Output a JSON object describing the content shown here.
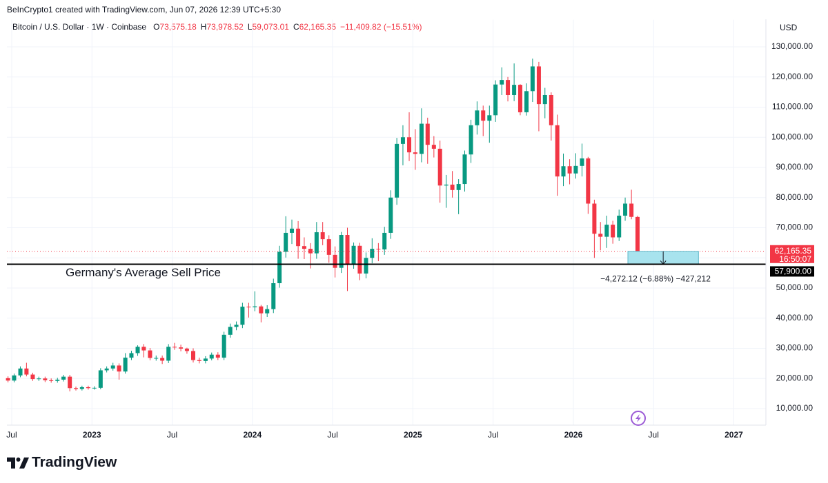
{
  "chart_data": {
    "type": "candlestick",
    "attribution": "BeInCrypto1 created with TradingView.com, Jun 07, 2026 12:39 UTC+5:30",
    "symbol": "Bitcoin / U.S. Dollar · 1W · Coinbase",
    "legend_fields": [
      {
        "key": "O",
        "value": "73,575.18"
      },
      {
        "key": "H",
        "value": "73,978.52"
      },
      {
        "key": "L",
        "value": "59,073.01"
      },
      {
        "key": "C",
        "value": "62,165.35"
      }
    ],
    "change": "−11,409.82 (−15.51%)",
    "currency": "USD",
    "brand": "TradingView",
    "up_color": "#089981",
    "down_color": "#f23645",
    "grid": true,
    "xlim": [
      2022.47,
      2027.2
    ],
    "ylim": [
      5000,
      139000
    ],
    "xticks": [
      {
        "value": 2022.5,
        "label": "Jul"
      },
      {
        "value": 2023,
        "label": "2023"
      },
      {
        "value": 2023.5,
        "label": "Jul"
      },
      {
        "value": 2024,
        "label": "2024"
      },
      {
        "value": 2024.5,
        "label": "Jul"
      },
      {
        "value": 2025,
        "label": "2025"
      },
      {
        "value": 2025.5,
        "label": "Jul"
      },
      {
        "value": 2026,
        "label": "2026"
      },
      {
        "value": 2026.5,
        "label": "Jul"
      },
      {
        "value": 2027,
        "label": "2027"
      }
    ],
    "yticks": [
      {
        "value": 10000,
        "label": "10,000.00"
      },
      {
        "value": 20000,
        "label": "20,000.00"
      },
      {
        "value": 30000,
        "label": "30,000.00"
      },
      {
        "value": 40000,
        "label": "40,000.00"
      },
      {
        "value": 50000,
        "label": "50,000.00"
      },
      {
        "value": 60000,
        "label": "60,000.00"
      },
      {
        "value": 70000,
        "label": "70,000.00"
      },
      {
        "value": 80000,
        "label": "80,000.00"
      },
      {
        "value": 90000,
        "label": "90,000.00"
      },
      {
        "value": 100000,
        "label": "100,000.00"
      },
      {
        "value": 110000,
        "label": "110,000.00"
      },
      {
        "value": 120000,
        "label": "120,000.00"
      },
      {
        "value": 130000,
        "label": "130,000.00"
      }
    ],
    "x": [
      2022.477,
      2022.515,
      2022.554,
      2022.592,
      2022.631,
      2022.669,
      2022.708,
      2022.746,
      2022.785,
      2022.823,
      2022.862,
      2022.9,
      2022.938,
      2022.977,
      2023.015,
      2023.054,
      2023.092,
      2023.131,
      2023.169,
      2023.208,
      2023.246,
      2023.285,
      2023.323,
      2023.362,
      2023.4,
      2023.438,
      2023.477,
      2023.515,
      2023.554,
      2023.592,
      2023.631,
      2023.669,
      2023.708,
      2023.746,
      2023.785,
      2023.823,
      2023.862,
      2023.9,
      2023.938,
      2023.977,
      2024.015,
      2024.054,
      2024.092,
      2024.131,
      2024.169,
      2024.208,
      2024.246,
      2024.285,
      2024.323,
      2024.362,
      2024.4,
      2024.438,
      2024.477,
      2024.515,
      2024.554,
      2024.592,
      2024.631,
      2024.669,
      2024.708,
      2024.746,
      2024.785,
      2024.823,
      2024.862,
      2024.9,
      2024.938,
      2024.977,
      2025.015,
      2025.054,
      2025.092,
      2025.131,
      2025.169,
      2025.208,
      2025.246,
      2025.285,
      2025.323,
      2025.362,
      2025.4,
      2025.438,
      2025.477,
      2025.515,
      2025.554,
      2025.592,
      2025.631,
      2025.669,
      2025.708,
      2025.746,
      2025.785,
      2025.823,
      2025.862,
      2025.9,
      2025.938,
      2025.977,
      2026.015,
      2026.054,
      2026.092,
      2026.131,
      2026.169,
      2026.208,
      2026.246,
      2026.285,
      2026.323,
      2026.362,
      2026.4
    ],
    "open": [
      20100,
      19300,
      21000,
      23300,
      21300,
      19800,
      20000,
      19400,
      19200,
      19600,
      20600,
      16800,
      16500,
      17100,
      16800,
      16900,
      22700,
      23300,
      24300,
      22300,
      26900,
      28400,
      30500,
      29300,
      26800,
      26800,
      25900,
      30500,
      30300,
      29900,
      29100,
      26100,
      25800,
      26600,
      27900,
      26900,
      34500,
      37100,
      37800,
      43800,
      43600,
      43900,
      41600,
      43000,
      51600,
      62000,
      68300,
      69700,
      63900,
      63000,
      61500,
      68500,
      66200,
      61000,
      56700,
      67600,
      58100,
      64000,
      54800,
      60000,
      63000,
      62800,
      68300,
      80000,
      97800,
      100000,
      95000,
      94500,
      104500,
      97500,
      96200,
      84000,
      84300,
      82500,
      84500,
      94300,
      104000,
      108900,
      105500,
      107300,
      117500,
      119000,
      114000,
      117400,
      108300,
      115300,
      123500,
      111000,
      114000,
      104000,
      87000,
      90400,
      88000,
      90500,
      93000,
      78000,
      68000,
      67000,
      71000,
      66800,
      74000,
      78000,
      73575.18
    ],
    "high": [
      20700,
      21600,
      24000,
      25200,
      21900,
      20600,
      20600,
      20000,
      20200,
      21200,
      21200,
      17300,
      17600,
      17600,
      17400,
      23400,
      24000,
      25200,
      25000,
      28400,
      29200,
      31000,
      31400,
      30100,
      27600,
      27600,
      31400,
      31800,
      31200,
      30200,
      30000,
      26900,
      27400,
      28600,
      28700,
      35500,
      38200,
      38900,
      45100,
      45100,
      48900,
      44400,
      44300,
      53100,
      64000,
      73800,
      72700,
      72200,
      66800,
      64900,
      71900,
      71900,
      67500,
      63800,
      68600,
      70000,
      65100,
      65000,
      61800,
      66500,
      64900,
      70300,
      82400,
      99800,
      104000,
      108300,
      102700,
      109600,
      106500,
      100400,
      98900,
      87500,
      88800,
      86100,
      95600,
      105800,
      111900,
      110500,
      110500,
      118900,
      123200,
      120000,
      124500,
      117600,
      117900,
      126100,
      125000,
      116400,
      114900,
      107500,
      94600,
      92700,
      94700,
      97900,
      93500,
      79300,
      71900,
      74000,
      72300,
      76000,
      80000,
      82600,
      73978.52
    ],
    "low": [
      18700,
      18700,
      20400,
      20700,
      19200,
      19200,
      18800,
      18600,
      18600,
      19000,
      15700,
      16000,
      16000,
      16300,
      16300,
      16400,
      22000,
      22600,
      19600,
      21600,
      26100,
      27500,
      27000,
      26000,
      25900,
      24800,
      25100,
      29500,
      29000,
      28200,
      25300,
      25000,
      25000,
      26000,
      26100,
      26100,
      33500,
      36000,
      36700,
      40200,
      42300,
      38600,
      40400,
      41700,
      50100,
      60100,
      64600,
      59700,
      59600,
      56500,
      59700,
      64200,
      58400,
      53500,
      55000,
      49000,
      56400,
      52600,
      53200,
      58200,
      58900,
      61000,
      66300,
      77600,
      90700,
      92100,
      89200,
      91700,
      91200,
      93300,
      78300,
      76600,
      80000,
      74500,
      82000,
      91500,
      100900,
      100400,
      98200,
      105100,
      114000,
      111900,
      112000,
      107300,
      107200,
      111700,
      102000,
      106300,
      98900,
      80600,
      83800,
      84400,
      86300,
      87000,
      74600,
      60000,
      62500,
      63300,
      64700,
      65600,
      72300,
      72800,
      59073.01
    ],
    "close": [
      19300,
      21000,
      23300,
      21300,
      19800,
      20000,
      19400,
      19200,
      19600,
      20600,
      16800,
      16500,
      17100,
      16800,
      16900,
      22700,
      23300,
      24300,
      22300,
      26900,
      28400,
      30500,
      29300,
      26800,
      26800,
      25900,
      30500,
      30300,
      29900,
      29100,
      26100,
      25800,
      26600,
      27900,
      26900,
      34500,
      37100,
      37800,
      43800,
      43600,
      43900,
      41600,
      43000,
      51600,
      62000,
      68300,
      69700,
      63900,
      63000,
      61500,
      68500,
      66200,
      61000,
      56700,
      67600,
      58100,
      64000,
      54800,
      60000,
      63000,
      62800,
      68300,
      80000,
      97800,
      100000,
      95000,
      94500,
      104500,
      97500,
      96200,
      84000,
      84300,
      82500,
      84500,
      94300,
      104000,
      108900,
      105500,
      107300,
      117500,
      119000,
      114000,
      117400,
      108300,
      115300,
      123500,
      111000,
      114000,
      104000,
      87000,
      90400,
      88000,
      90500,
      93000,
      78000,
      68000,
      67000,
      71000,
      66800,
      74000,
      78000,
      73600,
      62165.35
    ],
    "last_price": {
      "value": 62165.35,
      "label": "62,165.35",
      "countdown": "16:50:07",
      "color": "#f23645"
    },
    "hline": {
      "value": 57900,
      "label": "57,900.00",
      "text": "Germany's Average Sell Price",
      "color": "#000000"
    },
    "measure": {
      "from": 62165.35,
      "to": 57893.23,
      "x": [
        2026.34,
        2026.78
      ],
      "label": "−4,272.12 (−6.88%) −427,212",
      "color": "#a8e3ee"
    }
  }
}
